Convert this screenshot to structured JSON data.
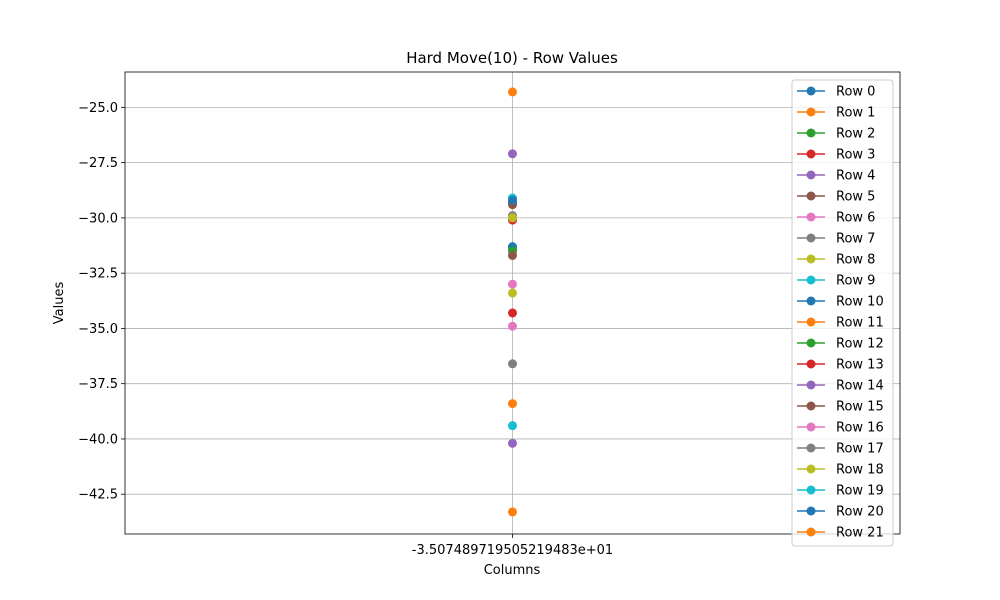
{
  "chart_data": {
    "type": "line",
    "title": "Hard Move(10) - Row Values",
    "xlabel": "Columns",
    "ylabel": "Values",
    "categories": [
      "-3.507489719505219483e+01"
    ],
    "ylim": [
      -44.3,
      -23.4
    ],
    "yticks": [
      -25.0,
      -27.5,
      -30.0,
      -32.5,
      -35.0,
      -37.5,
      -40.0,
      -42.5
    ],
    "ytick_labels": [
      "−25.0",
      "−27.5",
      "−30.0",
      "−32.5",
      "−35.0",
      "−37.5",
      "−40.0",
      "−42.5"
    ],
    "grid": true,
    "legend_position": "top-right",
    "series": [
      {
        "name": "Row 0",
        "color": "#1f77b4",
        "values": [
          -29.3
        ]
      },
      {
        "name": "Row 1",
        "color": "#ff7f0e",
        "values": [
          -43.3
        ]
      },
      {
        "name": "Row 2",
        "color": "#2ca02c",
        "values": [
          -31.4
        ]
      },
      {
        "name": "Row 3",
        "color": "#d62728",
        "values": [
          -30.1
        ]
      },
      {
        "name": "Row 4",
        "color": "#9467bd",
        "values": [
          -40.2
        ]
      },
      {
        "name": "Row 5",
        "color": "#8c564b",
        "values": [
          -29.4
        ]
      },
      {
        "name": "Row 6",
        "color": "#e377c2",
        "values": [
          -33.0
        ]
      },
      {
        "name": "Row 7",
        "color": "#7f7f7f",
        "values": [
          -36.6
        ]
      },
      {
        "name": "Row 8",
        "color": "#bcbd22",
        "values": [
          -33.4
        ]
      },
      {
        "name": "Row 9",
        "color": "#17becf",
        "values": [
          -39.4
        ]
      },
      {
        "name": "Row 10",
        "color": "#1f77b4",
        "values": [
          -31.3
        ]
      },
      {
        "name": "Row 11",
        "color": "#ff7f0e",
        "values": [
          -38.4
        ]
      },
      {
        "name": "Row 12",
        "color": "#2ca02c",
        "values": [
          -31.5
        ]
      },
      {
        "name": "Row 13",
        "color": "#d62728",
        "values": [
          -34.3
        ]
      },
      {
        "name": "Row 14",
        "color": "#9467bd",
        "values": [
          -27.1
        ]
      },
      {
        "name": "Row 15",
        "color": "#8c564b",
        "values": [
          -31.7
        ]
      },
      {
        "name": "Row 16",
        "color": "#e377c2",
        "values": [
          -34.9
        ]
      },
      {
        "name": "Row 17",
        "color": "#7f7f7f",
        "values": [
          -29.9
        ]
      },
      {
        "name": "Row 18",
        "color": "#bcbd22",
        "values": [
          -30.0
        ]
      },
      {
        "name": "Row 19",
        "color": "#17becf",
        "values": [
          -29.1
        ]
      },
      {
        "name": "Row 20",
        "color": "#1f77b4",
        "values": [
          -29.2
        ]
      },
      {
        "name": "Row 21",
        "color": "#ff7f0e",
        "values": [
          -24.3
        ]
      }
    ]
  }
}
